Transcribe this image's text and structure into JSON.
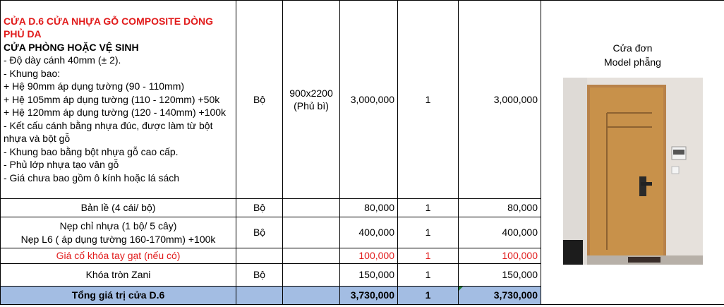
{
  "main_item": {
    "title_red": "CỬA D.6 CỬA NHỰA GỖ COMPOSITE DÒNG PHỦ DA",
    "title_black": "CỬA PHÒNG HOẶC VỆ SINH",
    "lines": [
      "- Độ dày cánh 40mm (± 2).",
      "- Khung bao:",
      "+ Hệ 90mm áp dụng tường (90 - 110mm)",
      "+ Hệ 105mm áp dụng tường (110 - 120mm) +50k",
      "+ Hệ 120mm áp dụng tường (120 - 140mm) +100k",
      "- Kết cấu cánh bằng nhựa đúc, được làm từ bột nhựa và bột gỗ",
      "- Khung bao bằng bột nhựa gỗ cao cấp.",
      "- Phủ lớp nhựa tạo vân gỗ",
      "- Giá chưa bao gồm ô kính hoặc lá sách"
    ],
    "unit": "Bộ",
    "size_line1": "900x2200",
    "size_line2": "(Phủ bì)",
    "price": "3,000,000",
    "qty": "1",
    "amount": "3,000,000"
  },
  "image_panel": {
    "caption_line1": "Cửa đơn",
    "caption_line2": "Model phẵng"
  },
  "rows": [
    {
      "name": "Bản lề (4 cái/ bộ)",
      "unit": "Bộ",
      "price": "80,000",
      "qty": "1",
      "amount": "80,000"
    },
    {
      "name_line1": "Nẹp chỉ nhựa (1 bộ/ 5 cây)",
      "name_line2": "Nẹp L6 ( áp dụng tường 160-170mm) +100k",
      "unit": "Bộ",
      "price": "400,000",
      "qty": "1",
      "amount": "400,000"
    },
    {
      "name": "Giá cố khóa tay gạt (nếu có)",
      "unit": "",
      "price": "100,000",
      "qty": "1",
      "amount": "100,000"
    },
    {
      "name": "Khóa tròn Zani",
      "unit": "Bộ",
      "price": "150,000",
      "qty": "1",
      "amount": "150,000"
    }
  ],
  "total": {
    "label": "Tổng giá trị cửa D.6",
    "price": "3,730,000",
    "qty": "1",
    "amount": "3,730,000"
  },
  "colors": {
    "red_text": "#e11b1b",
    "total_fill": "#a3bde3",
    "door_wood": "#c8914a"
  }
}
